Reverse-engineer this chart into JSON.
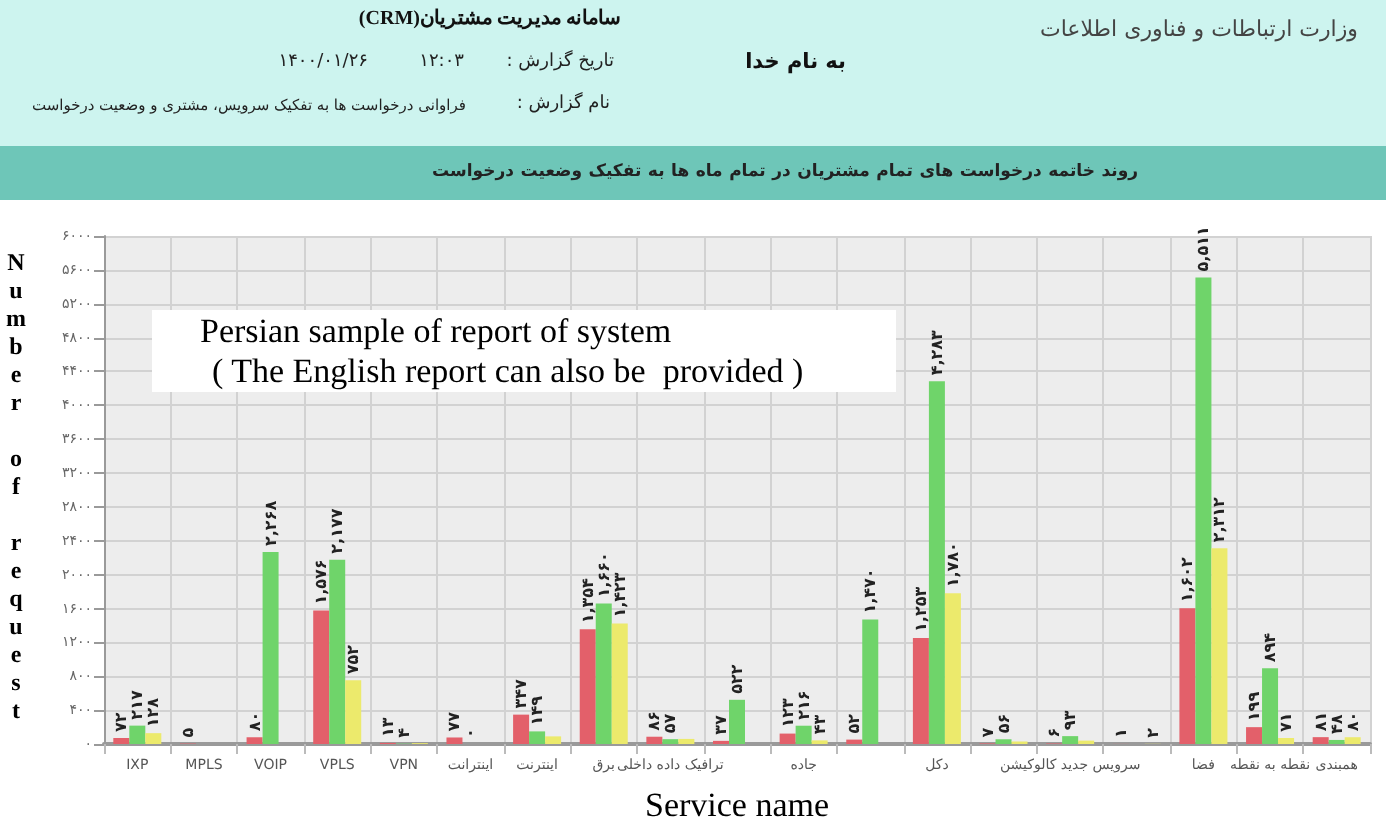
{
  "chart_data": {
    "type": "bar",
    "title": "روند خاتمه درخواست های تمام مشتریان در تمام ماه ها به تفکیک وضعیت درخواست",
    "xlabel": "Service name",
    "ylabel": "Number of request",
    "annotations": [
      "وزارت ارتباطات و فناوری اطلاعات",
      "به نام خدا",
      "سامانه مدیریت مشتریان(CRM)",
      "تاریخ گزارش :",
      "۱۲:۰۳",
      "۱۴۰۰/۰۱/۲۶",
      "نام گزارش :",
      "فراوانی درخواست ها به تفکیک سرویس، مشتری و وضعیت درخواست",
      "Persian sample of report of system",
      "( The English report can also be  provided )"
    ],
    "categories": [
      "IXP",
      "MPLS",
      "VOIP",
      "VPLS",
      "VPN",
      "اینترانت",
      "اینترنت",
      "برق",
      "ترافیک داده داخلی",
      null,
      "جاده",
      null,
      "دکل",
      null,
      "سرویس جدید کالوکیشن",
      null,
      "فضا",
      "نقطه به نقطه",
      "همبندی"
    ],
    "series": [
      {
        "color": "#e3606a",
        "values": [
          72,
          5,
          80,
          1576,
          13,
          77,
          347,
          1354,
          86,
          37,
          123,
          52,
          1253,
          7,
          6,
          1,
          1602,
          199,
          81
        ],
        "value_labels": [
          "۷۲",
          "۵",
          "۸۰",
          "۱,۵۷۶",
          "۱۳",
          "۷۷",
          "۳۴۷",
          "۱,۳۵۴",
          "۸۶",
          "۳۷",
          "۱۲۳",
          "۵۲",
          "۱,۲۵۳",
          "۷",
          "۶",
          "۱",
          "۱,۶۰۲",
          "۱۹۹",
          "۸۱"
        ]
      },
      {
        "color": "#6fd46a",
        "values": [
          217,
          null,
          2268,
          2177,
          4,
          0,
          149,
          1660,
          57,
          522,
          216,
          1470,
          4283,
          56,
          93,
          null,
          5511,
          894,
          48
        ],
        "value_labels": [
          "۲۱۷",
          null,
          "۲,۲۶۸",
          "۲,۱۷۷",
          "۴",
          "۰",
          "۱۴۹",
          "۱,۶۶۰",
          "۵۷",
          "۵۲۲",
          "۲۱۶",
          "۱,۴۷۰",
          "۴,۲۸۳",
          "۵۶",
          "۹۳",
          null,
          "۵,۵۱۱",
          "۸۹۴",
          "۴۸"
        ]
      },
      {
        "color": "#ecea6c",
        "values": [
          128,
          null,
          null,
          752,
          10,
          null,
          90,
          1423,
          60,
          null,
          43,
          null,
          1780,
          30,
          40,
          2,
          2312,
          71,
          80
        ],
        "value_labels": [
          "۱۲۸",
          null,
          null,
          "۷۵۲",
          null,
          null,
          null,
          "۱,۴۲۳",
          null,
          null,
          "۴۳",
          null,
          "۱,۷۸۰",
          null,
          null,
          "۲",
          "۲,۳۱۲",
          "۷۱",
          "۸۰"
        ]
      }
    ],
    "ylim": [
      0,
      6000
    ],
    "yticks": [
      {
        "value": 0,
        "label": "۰"
      },
      {
        "value": 400,
        "label": "۴۰۰"
      },
      {
        "value": 800,
        "label": "۸۰۰"
      },
      {
        "value": 1200,
        "label": "۱۲۰۰"
      },
      {
        "value": 1600,
        "label": "۱۶۰۰"
      },
      {
        "value": 2000,
        "label": "۲۰۰۰"
      },
      {
        "value": 2400,
        "label": "۲۴۰۰"
      },
      {
        "value": 2800,
        "label": "۲۸۰۰"
      },
      {
        "value": 3200,
        "label": "۳۲۰۰"
      },
      {
        "value": 3600,
        "label": "۳۶۰۰"
      },
      {
        "value": 4000,
        "label": "۴۰۰۰"
      },
      {
        "value": 4400,
        "label": "۴۴۰۰"
      },
      {
        "value": 4800,
        "label": "۴۸۰۰"
      },
      {
        "value": 5200,
        "label": "۵۲۰۰"
      },
      {
        "value": 5600,
        "label": "۵۶۰۰"
      },
      {
        "value": 6000,
        "label": "۶۰۰۰"
      }
    ],
    "grid": true
  }
}
